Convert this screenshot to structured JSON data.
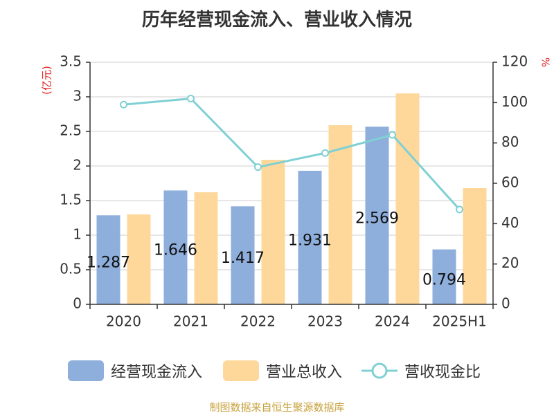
{
  "chart_data": {
    "type": "bar",
    "title": "历年经营现金流入、营业收入情况",
    "categories": [
      "2020",
      "2021",
      "2022",
      "2023",
      "2024",
      "2025H1"
    ],
    "y_left": {
      "label": "(亿元)",
      "ylim": [
        0,
        3.5
      ],
      "ticks": [
        "0",
        "0.5",
        "1",
        "1.5",
        "2",
        "2.5",
        "3",
        "3.5"
      ]
    },
    "y_right": {
      "label": "%",
      "ylim": [
        0,
        120
      ],
      "ticks": [
        "0",
        "20",
        "40",
        "60",
        "80",
        "100",
        "120"
      ]
    },
    "grid": true,
    "legend_position": "bottom",
    "series": [
      {
        "name": "经营现金流入",
        "type": "bar",
        "axis": "left",
        "color": "#8eaedb",
        "values": [
          1.287,
          1.646,
          1.417,
          1.931,
          2.569,
          0.794
        ],
        "data_labels": [
          "1.287",
          "1.646",
          "1.417",
          "1.931",
          "2.569",
          "0.794"
        ]
      },
      {
        "name": "营业总收入",
        "type": "bar",
        "axis": "left",
        "color": "#fdd89a",
        "values": [
          1.3,
          1.62,
          2.09,
          2.59,
          3.05,
          1.68
        ]
      },
      {
        "name": "营收现金比",
        "type": "line",
        "axis": "right",
        "color": "#7fd0d4",
        "values": [
          99,
          102,
          68,
          75,
          84,
          47
        ]
      }
    ]
  },
  "footer": "制图数据来自恒生聚源数据库"
}
